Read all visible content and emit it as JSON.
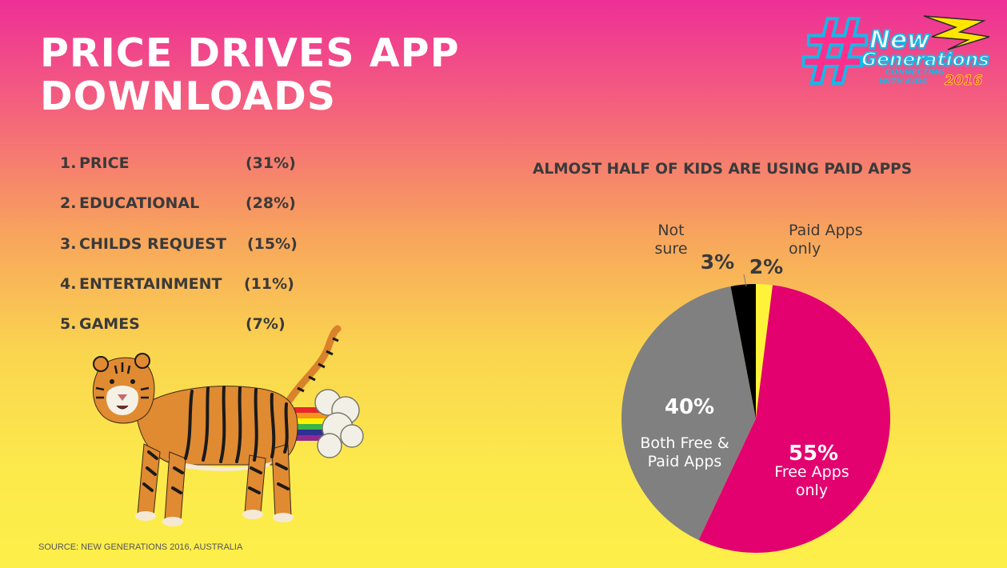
{
  "slide": {
    "title_line1": "PRICE DRIVES APP",
    "title_line2": "DOWNLOADS",
    "logo": {
      "hash": "#",
      "line1": "New",
      "line2": "Generations",
      "tagline1": "CONNECTING",
      "tagline2": "WITH KIDS",
      "year": "2016"
    },
    "ranking": [
      {
        "num": "1.",
        "label": "PRICE",
        "value": "(31%)"
      },
      {
        "num": "2.",
        "label": "EDUCATIONAL",
        "value": "(28%)"
      },
      {
        "num": "3.",
        "label": "CHILDS REQUEST",
        "value": "(15%)"
      },
      {
        "num": "4.",
        "label": "ENTERTAINMENT",
        "value": "(11%)"
      },
      {
        "num": "5.",
        "label": "GAMES",
        "value": "(7%)"
      }
    ],
    "source": "SOURCE: NEW GENERATIONS 2016, AUSTRALIA",
    "background_colors": [
      "#ee2f97",
      "#fdef4a"
    ],
    "text_color": "#3a3a3a"
  },
  "chart_data": {
    "type": "pie",
    "title": "ALMOST HALF OF KIDS ARE USING PAID APPS",
    "slices": [
      {
        "label": "Paid Apps only",
        "label_lines": [
          "Paid Apps",
          "only"
        ],
        "value": 2,
        "value_label": "2%",
        "color": "#fff33a"
      },
      {
        "label": "Free Apps only",
        "label_lines": [
          "Free Apps",
          "only"
        ],
        "value": 55,
        "value_label": "55%",
        "color": "#e3006f"
      },
      {
        "label": "Both Free & Paid Apps",
        "label_lines": [
          "Both Free &",
          "Paid Apps"
        ],
        "value": 40,
        "value_label": "40%",
        "color": "#808080"
      },
      {
        "label": "Not sure",
        "label_lines": [
          "Not",
          "sure"
        ],
        "value": 3,
        "value_label": "3%",
        "color": "#000000"
      }
    ]
  }
}
